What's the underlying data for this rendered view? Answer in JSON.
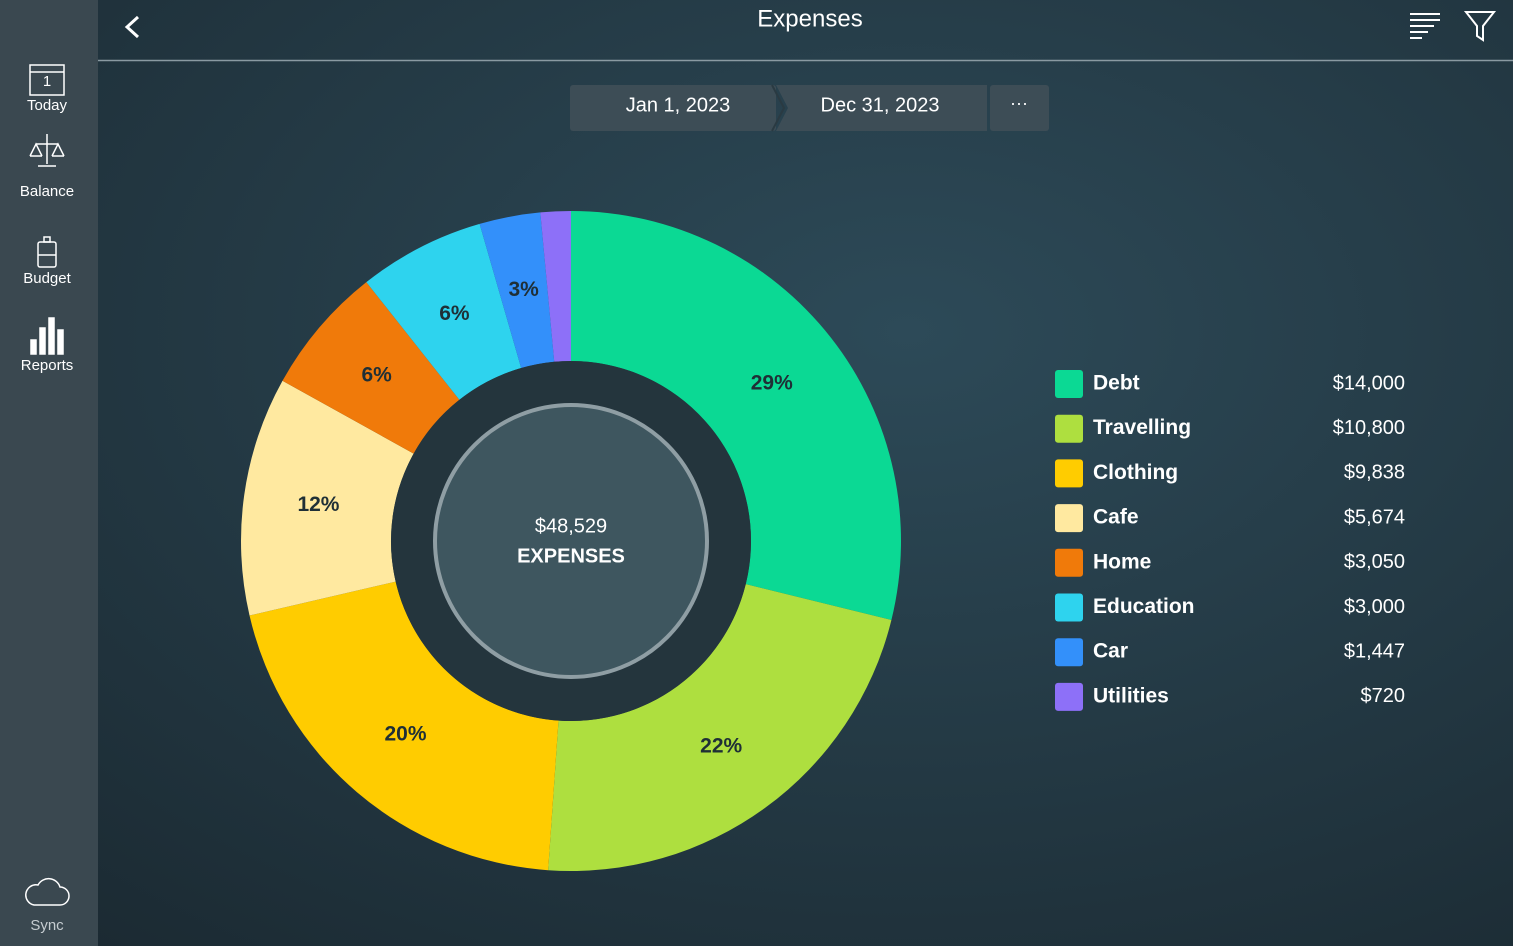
{
  "header": {
    "title": "Expenses"
  },
  "sidebar": {
    "items": [
      "Today",
      "Balance",
      "Budget",
      "Reports"
    ],
    "sync": "Sync"
  },
  "date_range": {
    "start": "Jan 1, 2023",
    "end": "Dec 31, 2023",
    "more": "···"
  },
  "chart_data": {
    "type": "pie",
    "categories": [
      "Debt",
      "Travelling",
      "Clothing",
      "Cafe",
      "Home",
      "Education",
      "Car",
      "Utilities"
    ],
    "values": [
      14000,
      10800,
      9838,
      5674,
      3050,
      3000,
      1447,
      720
    ],
    "value_labels": [
      "$14,000",
      "$10,800",
      "$9,838",
      "$5,674",
      "$3,050",
      "$3,000",
      "$1,447",
      "$720"
    ],
    "slice_labels": [
      "29%",
      "22%",
      "20%",
      "12%",
      "6%",
      "6%",
      "3%",
      null
    ],
    "colors": [
      "#0bd994",
      "#aedf3f",
      "#ffcc00",
      "#ffe9a0",
      "#f07a0a",
      "#2ed3ee",
      "#3390fa",
      "#8d70f8"
    ],
    "total_label": "$48,529",
    "center_label": "EXPENSES"
  }
}
